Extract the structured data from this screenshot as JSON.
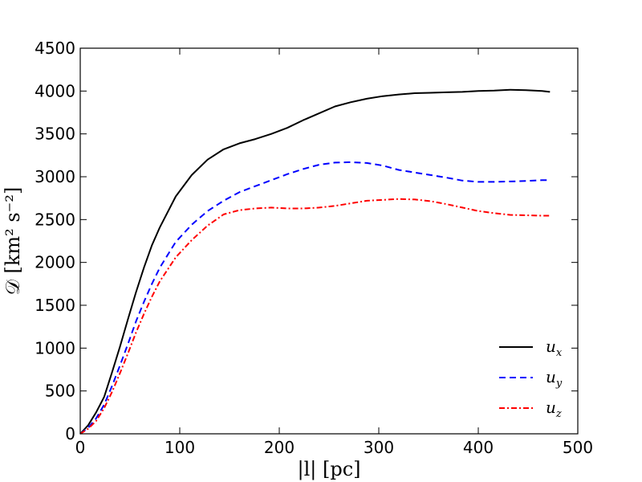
{
  "chart_data": {
    "type": "line",
    "title": "",
    "xlabel": "|l| [pc]",
    "ylabel": "𝒟 [km² s⁻²]",
    "xlim": [
      0,
      500
    ],
    "ylim": [
      0,
      4500
    ],
    "xticks": [
      0,
      100,
      200,
      300,
      400,
      500
    ],
    "yticks": [
      0,
      500,
      1000,
      1500,
      2000,
      2500,
      3000,
      3500,
      4000,
      4500
    ],
    "grid": false,
    "legend_position": "bottom-right",
    "series": [
      {
        "name": "u_x",
        "label_main": "u",
        "label_sub": "x",
        "color": "#000000",
        "style": "solid",
        "x": [
          0,
          8,
          16,
          24,
          32,
          40,
          48,
          56,
          64,
          72,
          80,
          96,
          112,
          128,
          144,
          160,
          176,
          192,
          208,
          224,
          240,
          256,
          272,
          288,
          304,
          320,
          336,
          352,
          368,
          384,
          400,
          416,
          432,
          448,
          464,
          472
        ],
        "y": [
          0,
          100,
          250,
          430,
          720,
          1020,
          1340,
          1650,
          1940,
          2200,
          2410,
          2770,
          3020,
          3200,
          3320,
          3390,
          3440,
          3500,
          3570,
          3660,
          3740,
          3820,
          3870,
          3910,
          3940,
          3960,
          3975,
          3980,
          3985,
          3990,
          4000,
          4005,
          4015,
          4010,
          4000,
          3990
        ]
      },
      {
        "name": "u_y",
        "label_main": "u",
        "label_sub": "y",
        "color": "#0000ff",
        "style": "dashed",
        "x": [
          0,
          8,
          16,
          24,
          32,
          40,
          48,
          56,
          64,
          72,
          80,
          96,
          112,
          128,
          144,
          160,
          176,
          192,
          208,
          224,
          240,
          256,
          272,
          288,
          304,
          320,
          336,
          352,
          368,
          384,
          400,
          416,
          432,
          448,
          464,
          472
        ],
        "y": [
          0,
          70,
          180,
          340,
          560,
          800,
          1050,
          1310,
          1540,
          1750,
          1940,
          2240,
          2440,
          2600,
          2720,
          2820,
          2890,
          2960,
          3030,
          3090,
          3140,
          3165,
          3170,
          3160,
          3130,
          3080,
          3050,
          3020,
          2990,
          2955,
          2940,
          2940,
          2945,
          2950,
          2960,
          2960
        ]
      },
      {
        "name": "u_z",
        "label_main": "u",
        "label_sub": "z",
        "color": "#ff0000",
        "style": "dashdot",
        "x": [
          0,
          8,
          16,
          24,
          32,
          40,
          48,
          56,
          64,
          72,
          80,
          96,
          112,
          128,
          144,
          160,
          176,
          192,
          208,
          224,
          240,
          256,
          272,
          288,
          304,
          320,
          336,
          352,
          368,
          384,
          400,
          416,
          432,
          448,
          464,
          472
        ],
        "y": [
          0,
          60,
          150,
          300,
          490,
          710,
          940,
          1180,
          1400,
          1600,
          1780,
          2060,
          2260,
          2430,
          2560,
          2610,
          2630,
          2640,
          2630,
          2630,
          2640,
          2660,
          2690,
          2720,
          2730,
          2740,
          2735,
          2715,
          2680,
          2640,
          2600,
          2575,
          2555,
          2550,
          2545,
          2545
        ]
      }
    ]
  }
}
